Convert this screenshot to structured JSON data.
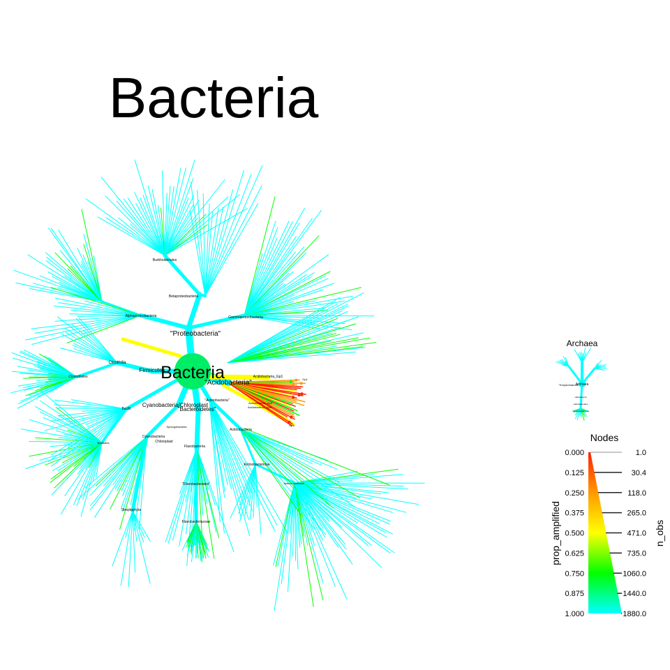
{
  "title": "Bacteria",
  "colors": {
    "cyan": "#00ffff",
    "green": "#00ff00",
    "yellow": "#ffff00",
    "orange": "#ff9900",
    "red": "#ff2000",
    "root_node": "#00ee66"
  },
  "bacteria_tree": {
    "root_label": "Bacteria",
    "labels": [
      "\"Proteobacteria\"",
      "Betaproteobacteria",
      "Burkholderiales",
      "Alphaproteobacteria",
      "Gammaproteobacteria",
      "Firmicutes",
      "Clostridia",
      "Clostridiales",
      "Bacilli",
      "Bacillales",
      "\"Acidobacteria\"",
      "Acidobacteria_Gp1",
      "Acidobacteria_Gp3",
      "Acidobacteria_Gp6",
      "Gp1",
      "Gp3",
      "\"Actinobacteria\"",
      "Actinobacteria",
      "Actinobacteridae",
      "Actinomycetales",
      "Cyanobacteria/Chloroplast",
      "\"Bacteroidetes\"",
      "Cyanobacteria",
      "Chloroplast",
      "Streptophyta",
      "Sphingobacteria",
      "Flavobacteria",
      "\"Flavobacteriales\"",
      "Flavobacteriaceae"
    ]
  },
  "archaea_tree": {
    "title": "Archaea",
    "labels": [
      "\"Euryarchaeota\"",
      "Archaea",
      "Halobacteria",
      "Halobacteriales",
      "Halobacteriaceae"
    ]
  },
  "legend": {
    "title": "Nodes",
    "color_axis_label": "prop_amplified",
    "size_axis_label": "n_obs",
    "color_ticks": [
      "0.000",
      "0.125",
      "0.250",
      "0.375",
      "0.500",
      "0.625",
      "0.750",
      "0.875",
      "1.000"
    ],
    "size_ticks": [
      "1.0",
      "30.4",
      "118.0",
      "265.0",
      "471.0",
      "735.0",
      "1060.0",
      "1440.0",
      "1880.0"
    ]
  }
}
